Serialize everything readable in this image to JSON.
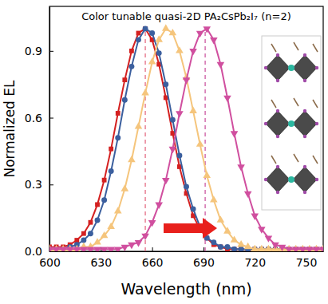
{
  "chart_data": {
    "type": "line",
    "title": "Color tunable quasi-2D PA₂CsPb₂I₇ (n=2)",
    "x_label": "Wavelength (nm)",
    "y_label": "Normalized EL",
    "x": [
      600,
      604,
      608,
      612,
      616,
      620,
      624,
      628,
      632,
      636,
      640,
      644,
      648,
      652,
      656,
      660,
      664,
      668,
      672,
      676,
      680,
      684,
      688,
      692,
      696,
      700,
      704,
      708,
      712,
      716,
      720,
      724,
      728,
      732,
      736,
      740,
      744,
      748,
      752,
      756,
      760
    ],
    "series": [
      {
        "color": "#d42020",
        "marker": "square",
        "values": [
          0.02,
          0.02,
          0.02,
          0.03,
          0.05,
          0.08,
          0.13,
          0.21,
          0.32,
          0.46,
          0.62,
          0.77,
          0.9,
          0.98,
          1.0,
          0.95,
          0.84,
          0.69,
          0.53,
          0.38,
          0.26,
          0.16,
          0.1,
          0.06,
          0.03,
          0.02,
          0.01,
          0.01,
          0.01,
          0.01,
          0.01,
          0.01,
          0.01,
          0.01,
          0.01,
          0.01,
          0.01,
          0.01,
          0.01,
          0.01,
          0.01
        ]
      },
      {
        "color": "#3b5f9e",
        "marker": "circle",
        "values": [
          0.01,
          0.01,
          0.01,
          0.02,
          0.03,
          0.05,
          0.08,
          0.14,
          0.23,
          0.36,
          0.51,
          0.68,
          0.83,
          0.95,
          1.0,
          0.98,
          0.89,
          0.75,
          0.59,
          0.43,
          0.29,
          0.19,
          0.11,
          0.06,
          0.04,
          0.02,
          0.02,
          0.01,
          0.01,
          0.01,
          0.01,
          0.01,
          0.01,
          0.01,
          0.01,
          0.01,
          0.01,
          0.01,
          0.01,
          0.01,
          0.01
        ]
      },
      {
        "color": "#f5c57c",
        "marker": "triangle-up",
        "values": [
          0.01,
          0.01,
          0.01,
          0.01,
          0.01,
          0.02,
          0.02,
          0.04,
          0.07,
          0.11,
          0.18,
          0.28,
          0.41,
          0.56,
          0.71,
          0.85,
          0.95,
          1.0,
          0.98,
          0.9,
          0.78,
          0.63,
          0.48,
          0.34,
          0.23,
          0.14,
          0.09,
          0.05,
          0.03,
          0.02,
          0.01,
          0.01,
          0.01,
          0.01,
          0.01,
          0.01,
          0.01,
          0.01,
          0.01,
          0.01,
          0.01
        ]
      },
      {
        "color": "#d04f9f",
        "marker": "triangle-down",
        "values": [
          0.01,
          0.01,
          0.01,
          0.01,
          0.01,
          0.01,
          0.01,
          0.01,
          0.01,
          0.01,
          0.01,
          0.02,
          0.03,
          0.04,
          0.07,
          0.13,
          0.21,
          0.32,
          0.46,
          0.62,
          0.77,
          0.9,
          0.98,
          1.0,
          0.95,
          0.84,
          0.69,
          0.53,
          0.38,
          0.26,
          0.16,
          0.1,
          0.06,
          0.03,
          0.02,
          0.01,
          0.01,
          0.01,
          0.01,
          0.01,
          0.01
        ]
      }
    ],
    "reference_lines": [
      656,
      691
    ],
    "xlim": [
      600,
      760
    ],
    "xticks": [
      600,
      630,
      660,
      690,
      720,
      750
    ],
    "ylim": [
      0,
      1.1
    ],
    "yticks": [
      {
        "value": 0,
        "label": "0.0"
      },
      0.3,
      0.6,
      0.9
    ],
    "grid": false
  }
}
